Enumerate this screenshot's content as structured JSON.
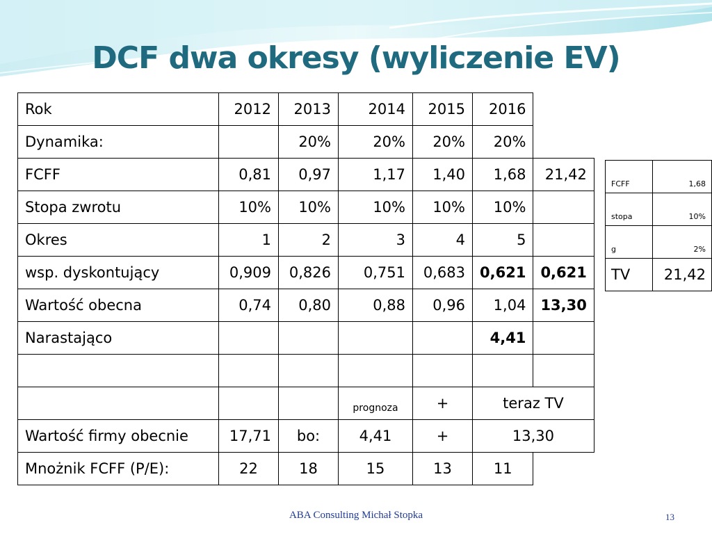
{
  "title": "DCF dwa okresy (wyliczenie EV)",
  "table": {
    "rows": [
      [
        "Rok",
        "2012",
        "2013",
        "2014",
        "2015",
        "2016",
        ""
      ],
      [
        "Dynamika:",
        "",
        "20%",
        "20%",
        "20%",
        "20%",
        ""
      ],
      [
        "FCFF",
        "0,81",
        "0,97",
        "1,17",
        "1,40",
        "1,68",
        "21,42"
      ],
      [
        "Stopa zwrotu",
        "10%",
        "10%",
        "10%",
        "10%",
        "10%",
        ""
      ],
      [
        "Okres",
        "1",
        "2",
        "3",
        "4",
        "5",
        ""
      ],
      [
        "wsp. dyskontujący",
        "0,909",
        "0,826",
        "0,751",
        "0,683",
        "0,621",
        "0,621"
      ],
      [
        "Wartość obecna",
        "0,74",
        "0,80",
        "0,88",
        "0,96",
        "1,04",
        "13,30"
      ],
      [
        "Narastająco",
        "",
        "",
        "",
        "",
        "4,41",
        ""
      ],
      [
        "",
        "",
        "",
        "",
        "",
        "",
        ""
      ]
    ],
    "row_prognoza": {
      "prognoza": "prognoza",
      "plus": "+",
      "teraz_tv": "teraz TV"
    },
    "row_wartosc_firmy": {
      "label": "Wartość firmy obecnie",
      "value": "17,71",
      "bo": "bo:",
      "sum": "4,41",
      "plus": "+",
      "tv": "13,30"
    },
    "row_mnoznik": {
      "label": "Mnożnik FCFF (P/E):",
      "values": [
        "22",
        "18",
        "15",
        "13",
        "11"
      ]
    }
  },
  "side_table": {
    "rows": [
      [
        "FCFF",
        "1,68"
      ],
      [
        "stopa",
        "10%"
      ],
      [
        "g",
        "2%"
      ],
      [
        "TV",
        "21,42"
      ]
    ]
  },
  "footer": {
    "text": "ABA Consulting Michał Stopka",
    "page": "13"
  },
  "colors": {
    "title": "#1f6a7f",
    "footer": "#1f3a93",
    "wave_light": "#cdeff3",
    "wave_mid": "#8fd9e4"
  }
}
